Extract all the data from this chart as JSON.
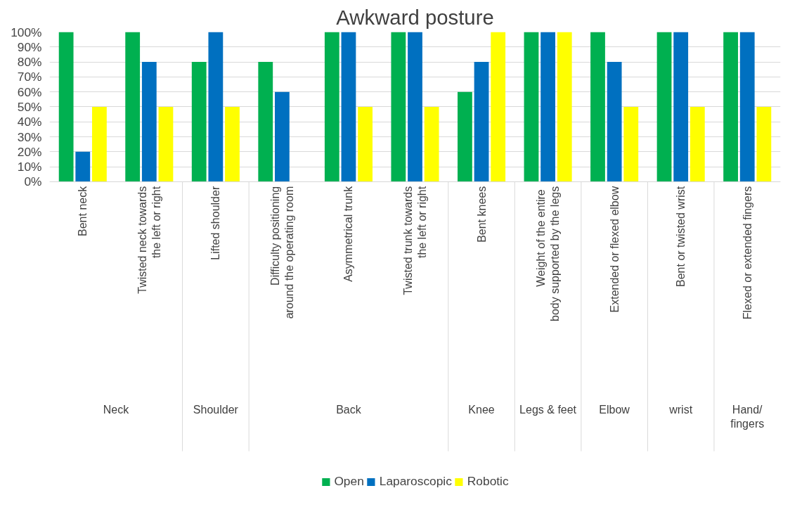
{
  "chart_data": {
    "type": "bar",
    "title": "Awkward posture",
    "categories": [
      "Bent neck",
      "Twisted neck towards the left or right",
      "Lifted shoulder",
      "Difficulty positioning around the operating room",
      "Asymmetrical trunk",
      "Twisted trunk towards the left or right",
      "Bent knees",
      "Weight of the  entire body supported by the legs",
      "Extended or flexed elbow",
      "Bent or twisted wrist",
      "Flexed or extended fingers"
    ],
    "series": [
      {
        "name": "Open",
        "color": "#00b050",
        "values": [
          100,
          100,
          80,
          80,
          100,
          100,
          60,
          100,
          100,
          100,
          100
        ]
      },
      {
        "name": "Laparoscopic",
        "color": "#0070c0",
        "values": [
          20,
          80,
          100,
          60,
          100,
          100,
          80,
          100,
          80,
          100,
          100
        ]
      },
      {
        "name": "Robotic",
        "color": "#ffff00",
        "values": [
          50,
          50,
          50,
          0,
          50,
          50,
          100,
          100,
          50,
          50,
          50
        ]
      }
    ],
    "annotations": [
      "Neck",
      "Shoulder",
      "Back",
      "Knee",
      "Legs & feet",
      "Elbow",
      "wrist",
      "Hand/ fingers"
    ],
    "ylim": [
      0,
      100
    ],
    "yticks": [
      {
        "value": 0,
        "label": "0%"
      },
      {
        "value": 10,
        "label": "10%"
      },
      {
        "value": 20,
        "label": "20%"
      },
      {
        "value": 30,
        "label": "30%"
      },
      {
        "value": 40,
        "label": "40%"
      },
      {
        "value": 50,
        "label": "50%"
      },
      {
        "value": 60,
        "label": "60%"
      },
      {
        "value": 70,
        "label": "70%"
      },
      {
        "value": 80,
        "label": "80%"
      },
      {
        "value": 90,
        "label": "90%"
      },
      {
        "value": 100,
        "label": "100%"
      }
    ],
    "grid": "y",
    "legend": "bottom"
  }
}
